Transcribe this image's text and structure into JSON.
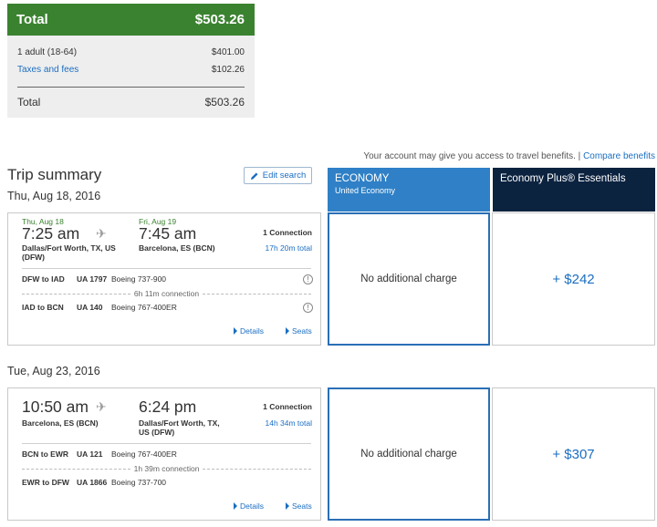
{
  "price_summary": {
    "header_label": "Total",
    "header_amount": "$503.26",
    "rows": [
      {
        "label": "1 adult (18-64)",
        "amount": "$401.00"
      },
      {
        "label": "Taxes and fees",
        "amount": "$102.26"
      }
    ],
    "total_label": "Total",
    "total_amount": "$503.26"
  },
  "benefits": {
    "text": "Your account may give you access to travel benefits. |",
    "link": "Compare benefits"
  },
  "trip": {
    "title": "Trip summary",
    "edit_label": "Edit search"
  },
  "fares": {
    "economy_title": "ECONOMY",
    "economy_sub": "United Economy",
    "plus_title": "Economy Plus® Essentials",
    "colors": {
      "economy": "#2f80c6",
      "plus": "#0c2340"
    }
  },
  "flights": [
    {
      "date": "Thu, Aug 18, 2016",
      "dep_day": "Thu, Aug 18",
      "dep_time": "7:25 am",
      "dep_city1": "Dallas/Fort Worth, TX, US",
      "dep_city2": "(DFW)",
      "arr_day": "Fri, Aug 19",
      "arr_time": "7:45 am",
      "arr_city1": "Barcelona, ES (BCN)",
      "arr_city2": "",
      "connections": "1 Connection",
      "duration": "17h 20m total",
      "seg1_route": "DFW to IAD",
      "seg1_flight": "UA 1797",
      "seg1_aircraft": "Boeing 737-900",
      "layover": "6h 11m connection",
      "seg2_route": "IAD to BCN",
      "seg2_flight": "UA 140",
      "seg2_aircraft": "Boeing 767-400ER",
      "details": "Details",
      "seats": "Seats",
      "economy_price": "No additional charge",
      "plus_price": "+ $242"
    },
    {
      "date": "Tue, Aug 23, 2016",
      "dep_day": "",
      "dep_time": "10:50 am",
      "dep_city1": "Barcelona, ES (BCN)",
      "dep_city2": "",
      "arr_day": "",
      "arr_time": "6:24 pm",
      "arr_city1": "Dallas/Fort Worth, TX,",
      "arr_city2": "US (DFW)",
      "connections": "1 Connection",
      "duration": "14h 34m total",
      "seg1_route": "BCN to EWR",
      "seg1_flight": "UA 121",
      "seg1_aircraft": "Boeing 767-400ER",
      "layover": "1h 39m connection",
      "seg2_route": "EWR to DFW",
      "seg2_flight": "UA 1866",
      "seg2_aircraft": "Boeing 737-700",
      "details": "Details",
      "seats": "Seats",
      "economy_price": "No additional charge",
      "plus_price": "+ $307"
    }
  ],
  "icons": {
    "plane": "airplane-icon",
    "info": "info-icon",
    "edit": "pencil-icon"
  }
}
